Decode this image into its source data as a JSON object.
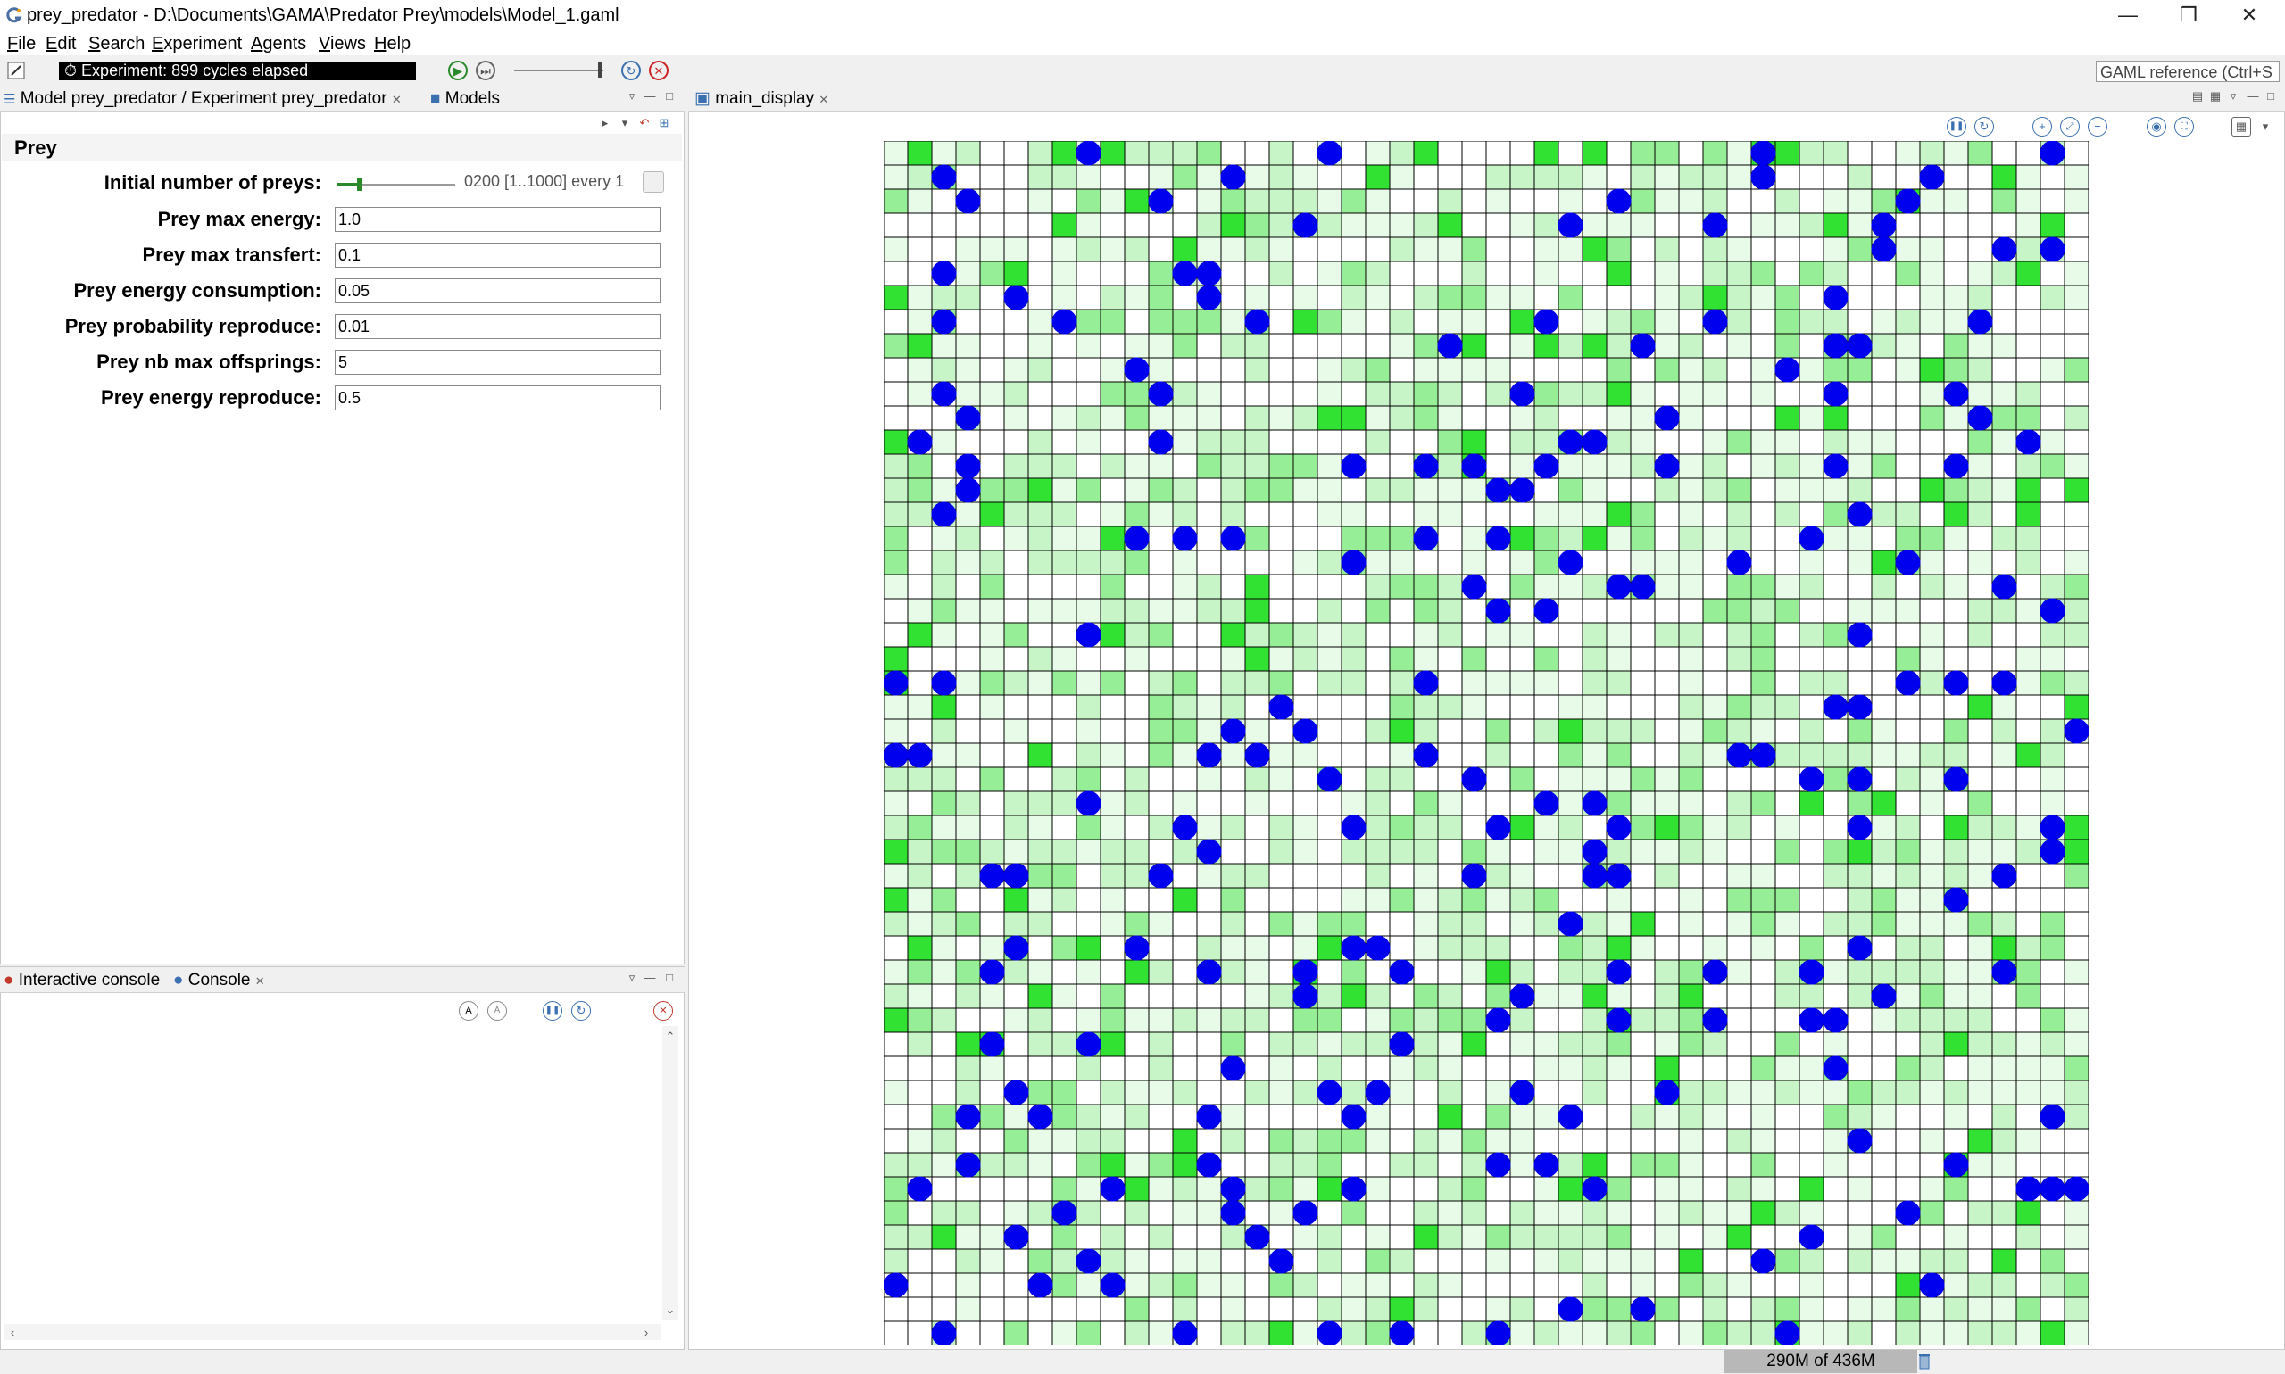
{
  "window": {
    "title": "prey_predator - D:\\Documents\\GAMA\\Predator Prey\\models\\Model_1.gaml",
    "controls": [
      "minimize-icon",
      "restore-icon",
      "close-icon"
    ]
  },
  "menu": [
    "File",
    "Edit",
    "Search",
    "Experiment",
    "Agents",
    "Views",
    "Help"
  ],
  "toolbar": {
    "status": "Experiment: 899 cycles elapsed",
    "search_placeholder": "GAML reference (Ctrl+S"
  },
  "left_tabs": {
    "model_tab": "Model prey_predator / Experiment prey_predator",
    "models_tab": "Models"
  },
  "parameters": {
    "section": "Prey",
    "initial": {
      "label": "Initial number of preys:",
      "slider_text": "0200 [1..1000] every 1",
      "value_fraction": 0.2
    },
    "items": [
      {
        "label": "Prey max energy:",
        "value": "1.0"
      },
      {
        "label": "Prey max transfert:",
        "value": "0.1"
      },
      {
        "label": "Prey energy consumption:",
        "value": "0.05"
      },
      {
        "label": "Prey probability reproduce:",
        "value": "0.01"
      },
      {
        "label": "Prey nb max offsprings:",
        "value": "5"
      },
      {
        "label": "Prey energy reproduce:",
        "value": "0.5"
      }
    ]
  },
  "console_tabs": {
    "interactive": "Interactive console",
    "console": "Console"
  },
  "display": {
    "tab": "main_display",
    "grid_cells": 50,
    "cell_colors": [
      "#ffffff",
      "#e8fbe8",
      "#c8f5c8",
      "#96ee96",
      "#32e232"
    ],
    "agent_color": "#0000ee",
    "agent_count": 200
  },
  "status": {
    "memory": "290M of 436M"
  }
}
